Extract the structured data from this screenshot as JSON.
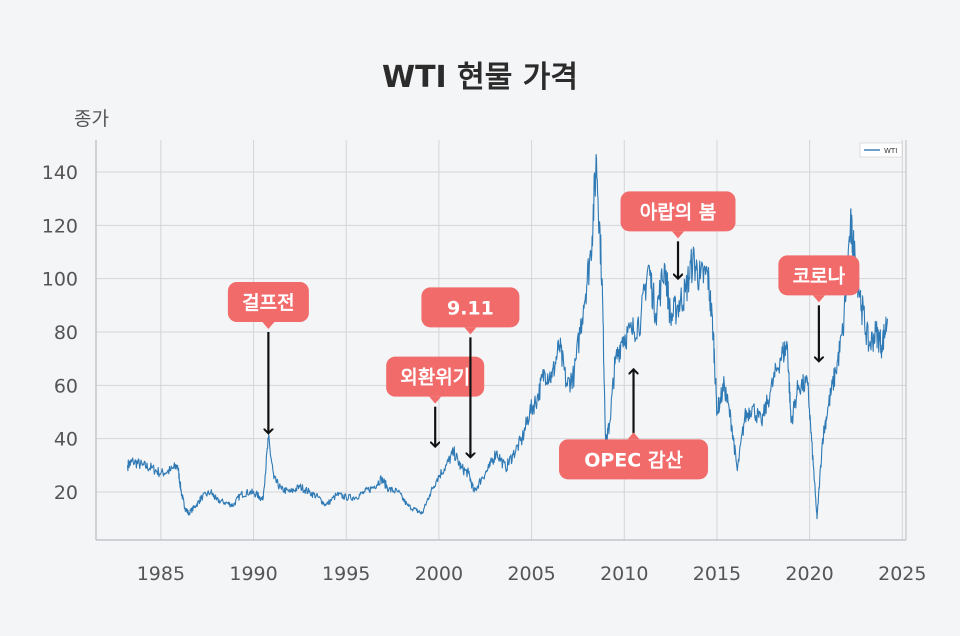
{
  "chart_data": {
    "type": "line",
    "title": "WTI 현물 가격",
    "ylabel": "종가",
    "xlabel": "",
    "xlim": [
      1981.5,
      2025.2
    ],
    "ylim": [
      2,
      152
    ],
    "xticks": [
      1985,
      1990,
      1995,
      2000,
      2005,
      2010,
      2015,
      2020,
      2025
    ],
    "yticks": [
      20,
      40,
      60,
      80,
      100,
      120,
      140
    ],
    "grid": true,
    "legend": "top-right",
    "colors": {
      "line": "#2f7ab5",
      "annotation": "#f26b6b",
      "arrow": "#111111",
      "grid": "#d3d5d9",
      "axes": "#b9bcc1"
    },
    "series": [
      {
        "name": "WTI",
        "points": [
          [
            1983.2,
            30
          ],
          [
            1983.5,
            31.5
          ],
          [
            1984.0,
            30
          ],
          [
            1984.5,
            29
          ],
          [
            1985.0,
            27
          ],
          [
            1985.5,
            28
          ],
          [
            1985.9,
            30
          ],
          [
            1986.1,
            20
          ],
          [
            1986.3,
            14
          ],
          [
            1986.5,
            12
          ],
          [
            1986.9,
            15
          ],
          [
            1987.2,
            18
          ],
          [
            1987.7,
            20
          ],
          [
            1988.0,
            17
          ],
          [
            1988.5,
            16
          ],
          [
            1988.9,
            15
          ],
          [
            1989.3,
            19
          ],
          [
            1989.8,
            20
          ],
          [
            1990.2,
            19
          ],
          [
            1990.5,
            17
          ],
          [
            1990.8,
            40
          ],
          [
            1991.1,
            25
          ],
          [
            1991.5,
            21
          ],
          [
            1992.0,
            20
          ],
          [
            1992.5,
            22
          ],
          [
            1993.0,
            20
          ],
          [
            1993.5,
            18
          ],
          [
            1993.9,
            15
          ],
          [
            1994.5,
            19
          ],
          [
            1995.0,
            18
          ],
          [
            1995.5,
            18
          ],
          [
            1996.0,
            20
          ],
          [
            1996.5,
            22
          ],
          [
            1996.9,
            25
          ],
          [
            1997.3,
            21
          ],
          [
            1997.8,
            20
          ],
          [
            1998.3,
            15
          ],
          [
            1998.8,
            13
          ],
          [
            1999.1,
            12
          ],
          [
            1999.5,
            19
          ],
          [
            1999.9,
            25
          ],
          [
            2000.4,
            30
          ],
          [
            2000.8,
            35
          ],
          [
            2001.2,
            29
          ],
          [
            2001.6,
            27
          ],
          [
            2001.9,
            20
          ],
          [
            2002.3,
            25
          ],
          [
            2002.7,
            29
          ],
          [
            2003.1,
            35
          ],
          [
            2003.6,
            29
          ],
          [
            2004.0,
            34
          ],
          [
            2004.5,
            40
          ],
          [
            2004.9,
            50
          ],
          [
            2005.3,
            55
          ],
          [
            2005.7,
            65
          ],
          [
            2006.1,
            63
          ],
          [
            2006.5,
            75
          ],
          [
            2006.9,
            60
          ],
          [
            2007.3,
            64
          ],
          [
            2007.8,
            90
          ],
          [
            2008.2,
            110
          ],
          [
            2008.5,
            145
          ],
          [
            2008.8,
            100
          ],
          [
            2009.0,
            38
          ],
          [
            2009.2,
            45
          ],
          [
            2009.5,
            68
          ],
          [
            2009.9,
            78
          ],
          [
            2010.4,
            80
          ],
          [
            2010.9,
            85
          ],
          [
            2011.3,
            105
          ],
          [
            2011.7,
            87
          ],
          [
            2012.2,
            105
          ],
          [
            2012.5,
            85
          ],
          [
            2012.9,
            90
          ],
          [
            2013.3,
            95
          ],
          [
            2013.7,
            107
          ],
          [
            2014.1,
            100
          ],
          [
            2014.5,
            102
          ],
          [
            2014.8,
            80
          ],
          [
            2015.0,
            50
          ],
          [
            2015.4,
            60
          ],
          [
            2015.8,
            45
          ],
          [
            2016.1,
            28
          ],
          [
            2016.5,
            48
          ],
          [
            2016.9,
            52
          ],
          [
            2017.4,
            46
          ],
          [
            2017.9,
            58
          ],
          [
            2018.4,
            70
          ],
          [
            2018.8,
            75
          ],
          [
            2019.0,
            46
          ],
          [
            2019.4,
            60
          ],
          [
            2019.9,
            60
          ],
          [
            2020.2,
            30
          ],
          [
            2020.4,
            10
          ],
          [
            2020.7,
            40
          ],
          [
            2021.0,
            52
          ],
          [
            2021.4,
            65
          ],
          [
            2021.8,
            80
          ],
          [
            2022.2,
            120
          ],
          [
            2022.4,
            110
          ],
          [
            2022.8,
            90
          ],
          [
            2023.2,
            75
          ],
          [
            2023.6,
            80
          ],
          [
            2023.9,
            75
          ],
          [
            2024.2,
            85
          ]
        ]
      }
    ],
    "annotations": [
      {
        "label": "걸프전",
        "x": 1990.8,
        "arrow_from": 80,
        "arrow_to": 42
      },
      {
        "label": "외환위기",
        "x": 1999.8,
        "arrow_from": 52,
        "arrow_to": 37
      },
      {
        "label": "9.11",
        "x": 2001.7,
        "arrow_from": 78,
        "arrow_to": 33
      },
      {
        "label": "OPEC 감산",
        "x": 2010.5,
        "arrow_from": 42,
        "arrow_to": 66
      },
      {
        "label": "아랍의 봄",
        "x": 2012.9,
        "arrow_from": 114,
        "arrow_to": 100
      },
      {
        "label": "코로나",
        "x": 2020.5,
        "arrow_from": 90,
        "arrow_to": 69
      }
    ]
  }
}
